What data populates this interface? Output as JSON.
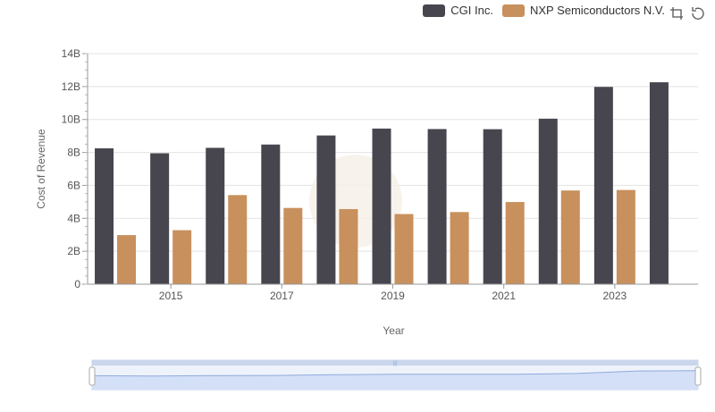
{
  "chart_data": {
    "type": "bar",
    "xlabel": "Year",
    "ylabel": "Cost of Revenue",
    "x": [
      2014,
      2015,
      2016,
      2017,
      2018,
      2019,
      2020,
      2021,
      2022,
      2023,
      2024
    ],
    "x_tick_labels": [
      "2015",
      "2017",
      "2019",
      "2021",
      "2023"
    ],
    "ylim": [
      0,
      14000000000
    ],
    "y_ticks": [
      0,
      2000000000,
      4000000000,
      6000000000,
      8000000000,
      10000000000,
      12000000000,
      14000000000
    ],
    "y_tick_labels": [
      "0",
      "2B",
      "4B",
      "6B",
      "8B",
      "10B",
      "12B",
      "14B"
    ],
    "grid": true,
    "legend_position": "top-right",
    "series": [
      {
        "name": "CGI Inc.",
        "color": "#47464f",
        "values": [
          8250000000,
          7950000000,
          8280000000,
          8480000000,
          9030000000,
          9450000000,
          9420000000,
          9410000000,
          10050000000,
          11980000000,
          12260000000
        ]
      },
      {
        "name": "NXP Semiconductors N.V.",
        "color": "#c8905d",
        "values": [
          2980000000,
          3280000000,
          5410000000,
          4630000000,
          4560000000,
          4260000000,
          4380000000,
          4990000000,
          5690000000,
          5720000000,
          null
        ]
      }
    ]
  },
  "icons": {
    "zoom": "zoom-icon",
    "restore": "restore-icon"
  }
}
